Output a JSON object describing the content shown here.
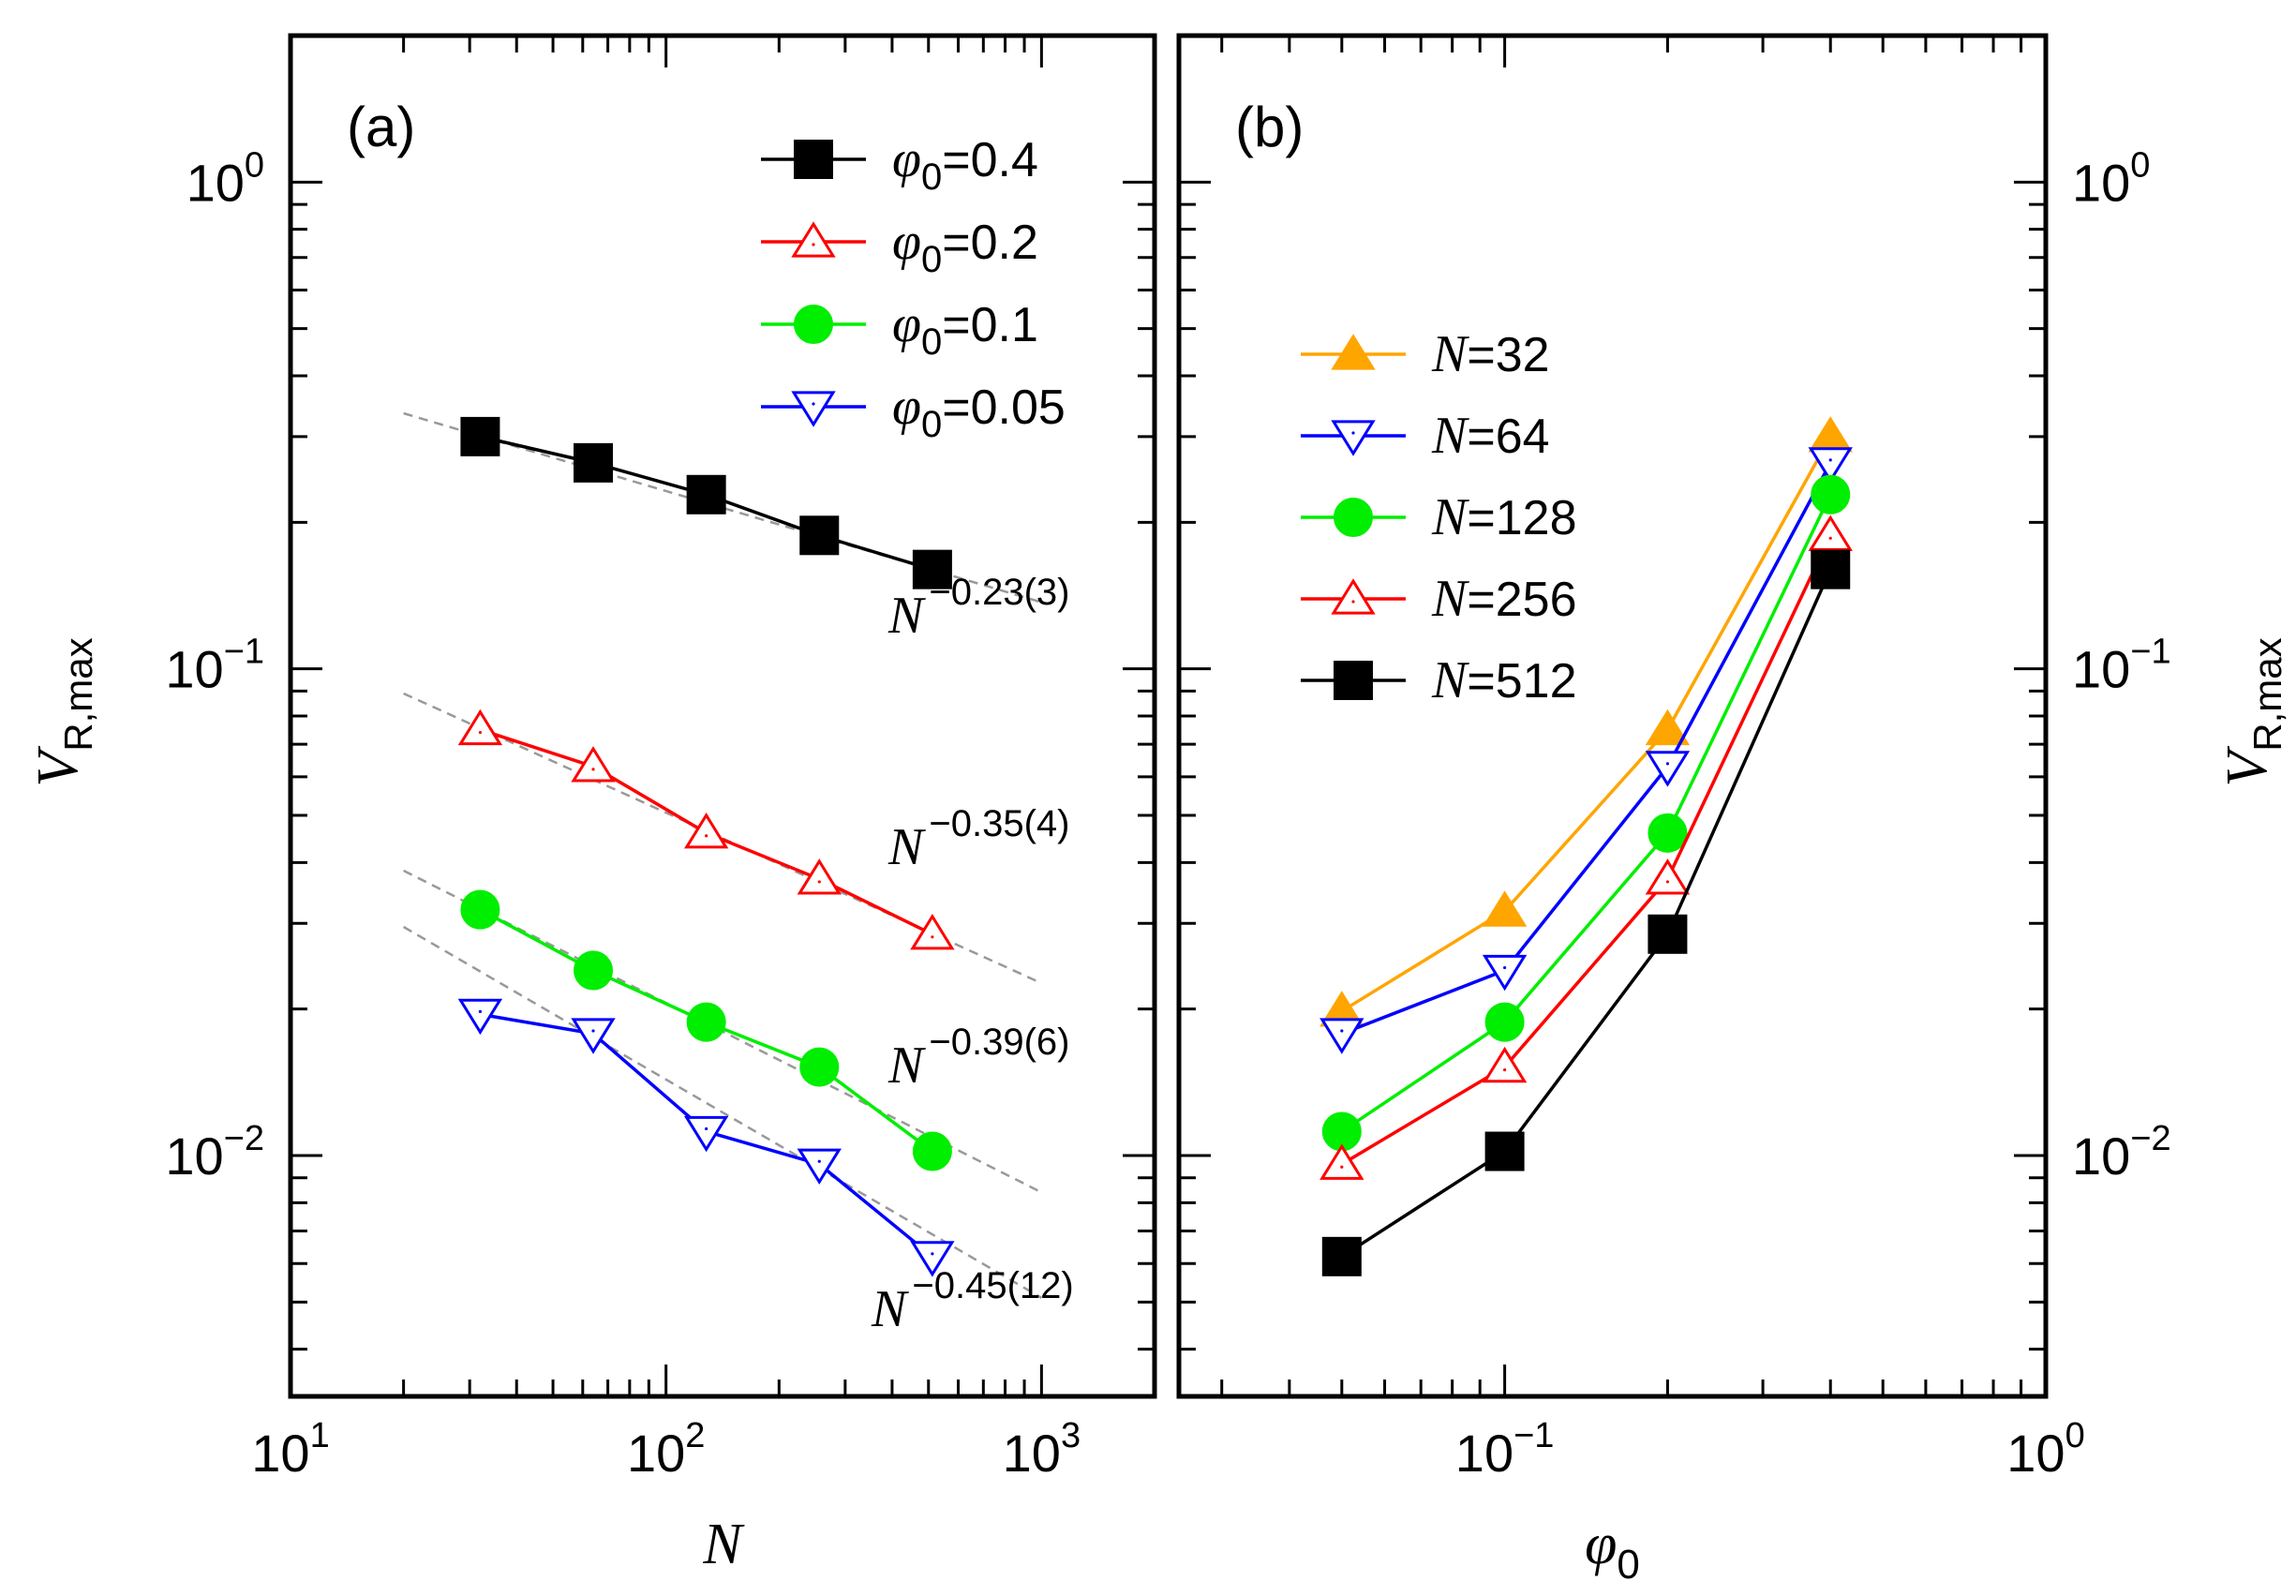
{
  "figure": {
    "y_axis_title": "V",
    "y_axis_subscript": "R,max"
  },
  "chart_data": [
    {
      "type": "line",
      "panel_label": "(a)",
      "xscale": "log",
      "yscale": "log",
      "xlabel": "N",
      "ylabel": "V_R,max",
      "xlim": [
        10,
        2000
      ],
      "ylim": [
        0.0032,
        2.0
      ],
      "xtick_labels": [
        {
          "base": "10",
          "exp": "1",
          "value": 10
        },
        {
          "base": "10",
          "exp": "2",
          "value": 100
        },
        {
          "base": "10",
          "exp": "3",
          "value": 1000
        }
      ],
      "ytick_labels": [
        {
          "base": "10",
          "exp": "0",
          "value": 1
        },
        {
          "base": "10",
          "exp": "−1",
          "value": 0.1
        },
        {
          "base": "10",
          "exp": "−2",
          "value": 0.01
        }
      ],
      "legend_position": "top-right",
      "series": [
        {
          "name": "φ0=0.4",
          "sym": "φ",
          "sub": "0",
          "val": "=0.4",
          "color": "#000000",
          "marker": "square",
          "filled": true,
          "x": [
            32,
            64,
            128,
            256,
            512
          ],
          "y": [
            0.3,
            0.265,
            0.228,
            0.188,
            0.16
          ],
          "fit": {
            "label_base": "N",
            "label_exp": "−0.23(3)",
            "x": [
              20,
              1000
            ],
            "y": [
              0.335,
              0.137
            ]
          }
        },
        {
          "name": "φ0=0.2",
          "sym": "φ",
          "sub": "0",
          "val": "=0.2",
          "color": "#ff0000",
          "marker": "triangle-up",
          "filled": false,
          "x": [
            32,
            64,
            128,
            256,
            512
          ],
          "y": [
            0.075,
            0.063,
            0.046,
            0.037,
            0.0285
          ],
          "fit": {
            "label_base": "N",
            "label_exp": "−0.35(4)",
            "x": [
              20,
              1000
            ],
            "y": [
              0.089,
              0.0226
            ]
          }
        },
        {
          "name": "φ0=0.1",
          "sym": "φ",
          "sub": "0",
          "val": "=0.1",
          "color": "#00ee00",
          "marker": "circle",
          "filled": true,
          "x": [
            32,
            64,
            128,
            256,
            512
          ],
          "y": [
            0.032,
            0.024,
            0.0188,
            0.0152,
            0.0102
          ],
          "fit": {
            "label_base": "N",
            "label_exp": "−0.39(6)",
            "x": [
              20,
              1000
            ],
            "y": [
              0.0385,
              0.0084
            ]
          }
        },
        {
          "name": "φ0=0.05",
          "sym": "φ",
          "sub": "0",
          "val": "=0.05",
          "color": "#0000ff",
          "marker": "triangle-down",
          "filled": false,
          "x": [
            32,
            64,
            128,
            256,
            512
          ],
          "y": [
            0.0195,
            0.0178,
            0.0112,
            0.0096,
            0.0062
          ],
          "fit": {
            "label_base": "N",
            "label_exp": "−0.45(12)",
            "x": [
              20,
              1000
            ],
            "y": [
              0.0295,
              0.0051
            ]
          }
        }
      ]
    },
    {
      "type": "line",
      "panel_label": "(b)",
      "xscale": "log",
      "yscale": "log",
      "xlabel": "φ0",
      "ylabel": "V_R,max",
      "xlim": [
        0.025,
        1.0
      ],
      "ylim": [
        0.0032,
        2.0
      ],
      "xtick_labels": [
        {
          "base": "10",
          "exp": "−1",
          "value": 0.1
        },
        {
          "base": "10",
          "exp": "0",
          "value": 1
        }
      ],
      "ytick_labels": [
        {
          "base": "10",
          "exp": "0",
          "value": 1
        },
        {
          "base": "10",
          "exp": "−1",
          "value": 0.1
        },
        {
          "base": "10",
          "exp": "−2",
          "value": 0.01
        }
      ],
      "legend_position": "top-left",
      "series": [
        {
          "name": "N=32",
          "sym": "N",
          "val": "=32",
          "color": "#ffa500",
          "marker": "triangle-up",
          "filled": true,
          "x": [
            0.05,
            0.1,
            0.2,
            0.4
          ],
          "y": [
            0.0198,
            0.0318,
            0.075,
            0.3
          ]
        },
        {
          "name": "N=64",
          "sym": "N",
          "val": "=64",
          "color": "#0000ff",
          "marker": "triangle-down",
          "filled": false,
          "x": [
            0.05,
            0.1,
            0.2,
            0.4
          ],
          "y": [
            0.0178,
            0.024,
            0.063,
            0.265
          ]
        },
        {
          "name": "N=128",
          "sym": "N",
          "val": "=128",
          "color": "#00ee00",
          "marker": "circle",
          "filled": true,
          "x": [
            0.05,
            0.1,
            0.2,
            0.4
          ],
          "y": [
            0.0112,
            0.0188,
            0.046,
            0.228
          ]
        },
        {
          "name": "N=256",
          "sym": "N",
          "val": "=256",
          "color": "#ff0000",
          "marker": "triangle-up",
          "filled": false,
          "x": [
            0.05,
            0.1,
            0.2,
            0.4
          ],
          "y": [
            0.0096,
            0.0152,
            0.037,
            0.188
          ]
        },
        {
          "name": "N=512",
          "sym": "N",
          "val": "=512",
          "color": "#000000",
          "marker": "square",
          "filled": true,
          "x": [
            0.05,
            0.1,
            0.2,
            0.4
          ],
          "y": [
            0.0062,
            0.0102,
            0.0285,
            0.16
          ]
        }
      ]
    }
  ]
}
